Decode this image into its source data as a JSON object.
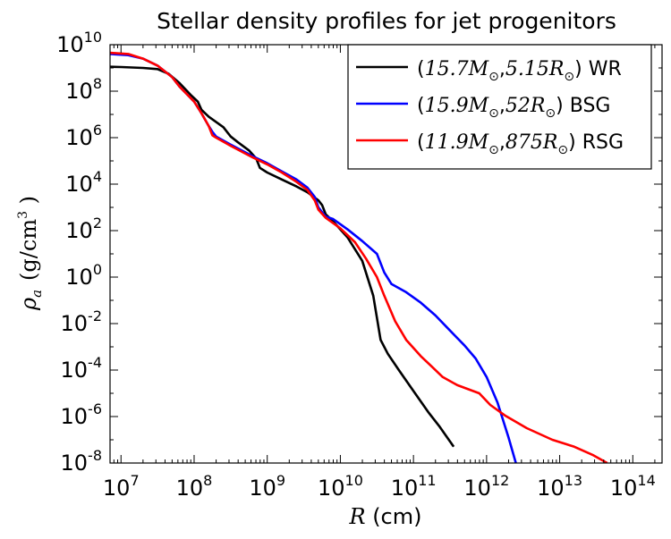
{
  "chart_data": {
    "type": "line",
    "title": "Stellar density profiles for jet progenitors",
    "xlabel": {
      "symbol": "R",
      "unit": " (cm)"
    },
    "ylabel": {
      "symbol": "ρ",
      "sub": "a",
      "unit": "(g/cm",
      "sup": "3",
      "close": " )"
    },
    "xscale": "log",
    "yscale": "log",
    "xlim_log10": [
      6.85,
      14.4
    ],
    "ylim_log10": [
      -8,
      10
    ],
    "x_ticks": [
      {
        "base": "10",
        "exp": "7",
        "value": 7
      },
      {
        "base": "10",
        "exp": "8",
        "value": 8
      },
      {
        "base": "10",
        "exp": "9",
        "value": 9
      },
      {
        "base": "10",
        "exp": "10",
        "value": 10
      },
      {
        "base": "10",
        "exp": "11",
        "value": 11
      },
      {
        "base": "10",
        "exp": "12",
        "value": 12
      },
      {
        "base": "10",
        "exp": "13",
        "value": 13
      },
      {
        "base": "10",
        "exp": "14",
        "value": 14
      }
    ],
    "y_ticks": [
      {
        "base": "10",
        "exp": "-8",
        "value": -8
      },
      {
        "base": "10",
        "exp": "-6",
        "value": -6
      },
      {
        "base": "10",
        "exp": "-4",
        "value": -4
      },
      {
        "base": "10",
        "exp": "-2",
        "value": -2
      },
      {
        "base": "10",
        "exp": "0",
        "value": 0
      },
      {
        "base": "10",
        "exp": "2",
        "value": 2
      },
      {
        "base": "10",
        "exp": "4",
        "value": 4
      },
      {
        "base": "10",
        "exp": "6",
        "value": 6
      },
      {
        "base": "10",
        "exp": "8",
        "value": 8
      },
      {
        "base": "10",
        "exp": "10",
        "value": 10
      }
    ],
    "legend_position": "top-right",
    "series": [
      {
        "mass": "15.7",
        "radius": "5.15",
        "kind": "WR",
        "color": "#000000",
        "points_log10": [
          [
            6.85,
            9.05
          ],
          [
            7.0,
            9.04
          ],
          [
            7.3,
            9.0
          ],
          [
            7.5,
            8.95
          ],
          [
            7.65,
            8.75
          ],
          [
            7.8,
            8.35
          ],
          [
            7.95,
            7.85
          ],
          [
            8.05,
            7.55
          ],
          [
            8.1,
            7.2
          ],
          [
            8.2,
            6.9
          ],
          [
            8.4,
            6.45
          ],
          [
            8.5,
            6.05
          ],
          [
            8.6,
            5.8
          ],
          [
            8.75,
            5.45
          ],
          [
            8.85,
            5.1
          ],
          [
            8.9,
            4.7
          ],
          [
            9.0,
            4.5
          ],
          [
            9.2,
            4.2
          ],
          [
            9.4,
            3.9
          ],
          [
            9.55,
            3.65
          ],
          [
            9.7,
            3.3
          ],
          [
            9.75,
            3.1
          ],
          [
            9.8,
            2.7
          ],
          [
            9.9,
            2.4
          ],
          [
            10.1,
            1.7
          ],
          [
            10.3,
            0.7
          ],
          [
            10.45,
            -0.8
          ],
          [
            10.55,
            -2.7
          ],
          [
            10.65,
            -3.3
          ],
          [
            10.8,
            -4.0
          ],
          [
            11.0,
            -4.9
          ],
          [
            11.2,
            -5.8
          ],
          [
            11.35,
            -6.4
          ],
          [
            11.55,
            -7.3
          ]
        ]
      },
      {
        "mass": "15.9",
        "radius": "52",
        "kind": "BSG",
        "color": "#0000ff",
        "points_log10": [
          [
            6.85,
            9.6
          ],
          [
            7.1,
            9.55
          ],
          [
            7.3,
            9.4
          ],
          [
            7.5,
            9.1
          ],
          [
            7.7,
            8.6
          ],
          [
            7.8,
            8.2
          ],
          [
            8.0,
            7.55
          ],
          [
            8.1,
            7.05
          ],
          [
            8.2,
            6.5
          ],
          [
            8.25,
            6.25
          ],
          [
            8.3,
            6.05
          ],
          [
            8.5,
            5.7
          ],
          [
            8.8,
            5.2
          ],
          [
            9.0,
            4.9
          ],
          [
            9.2,
            4.55
          ],
          [
            9.4,
            4.2
          ],
          [
            9.55,
            3.85
          ],
          [
            9.65,
            3.45
          ],
          [
            9.7,
            3.0
          ],
          [
            9.8,
            2.6
          ],
          [
            9.9,
            2.5
          ],
          [
            10.1,
            2.05
          ],
          [
            10.3,
            1.55
          ],
          [
            10.5,
            1.0
          ],
          [
            10.6,
            0.2
          ],
          [
            10.7,
            -0.3
          ],
          [
            10.9,
            -0.65
          ],
          [
            11.1,
            -1.1
          ],
          [
            11.3,
            -1.65
          ],
          [
            11.5,
            -2.3
          ],
          [
            11.7,
            -2.95
          ],
          [
            11.85,
            -3.5
          ],
          [
            12.0,
            -4.3
          ],
          [
            12.15,
            -5.4
          ],
          [
            12.3,
            -6.9
          ],
          [
            12.4,
            -8.0
          ]
        ]
      },
      {
        "mass": "11.9",
        "radius": "875",
        "kind": "RSG",
        "color": "#ff0000",
        "points_log10": [
          [
            6.85,
            9.65
          ],
          [
            7.1,
            9.6
          ],
          [
            7.3,
            9.4
          ],
          [
            7.5,
            9.1
          ],
          [
            7.7,
            8.6
          ],
          [
            7.8,
            8.2
          ],
          [
            8.0,
            7.55
          ],
          [
            8.1,
            7.05
          ],
          [
            8.2,
            6.5
          ],
          [
            8.25,
            6.1
          ],
          [
            8.3,
            6.0
          ],
          [
            8.5,
            5.65
          ],
          [
            8.8,
            5.15
          ],
          [
            9.0,
            4.85
          ],
          [
            9.2,
            4.5
          ],
          [
            9.4,
            4.1
          ],
          [
            9.55,
            3.75
          ],
          [
            9.65,
            3.3
          ],
          [
            9.7,
            2.9
          ],
          [
            9.8,
            2.55
          ],
          [
            10.0,
            2.1
          ],
          [
            10.2,
            1.5
          ],
          [
            10.35,
            0.8
          ],
          [
            10.5,
            0.0
          ],
          [
            10.6,
            -0.8
          ],
          [
            10.75,
            -1.9
          ],
          [
            10.9,
            -2.7
          ],
          [
            11.1,
            -3.4
          ],
          [
            11.25,
            -3.85
          ],
          [
            11.4,
            -4.3
          ],
          [
            11.6,
            -4.65
          ],
          [
            11.9,
            -5.0
          ],
          [
            12.05,
            -5.5
          ],
          [
            12.25,
            -5.95
          ],
          [
            12.55,
            -6.5
          ],
          [
            12.9,
            -7.0
          ],
          [
            13.2,
            -7.3
          ],
          [
            13.45,
            -7.65
          ],
          [
            13.65,
            -8.0
          ]
        ]
      }
    ]
  }
}
